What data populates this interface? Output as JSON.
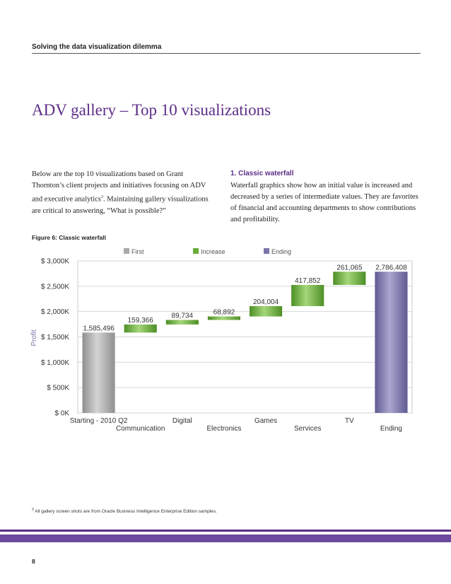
{
  "header": {
    "running_title": "Solving the data visualization dilemma"
  },
  "title": "ADV gallery – Top 10 visualizations",
  "intro": {
    "text_before_sup": "Below are the top 10 visualizations based on Grant Thornton’s client projects and initiatives focusing on ADV and executive analytics",
    "sup": "3",
    "text_after_sup": ". Maintaining gallery visualizations are critical to answering, “What is possible?”"
  },
  "section": {
    "heading": "1. Classic waterfall",
    "body": "Waterfall graphics show how an initial value is increased and decreased by a series of intermediate values. They are favorites of financial and accounting departments to show contributions and profitability."
  },
  "figure": {
    "caption": "Figure 6: Classic waterfall"
  },
  "chart_data": {
    "type": "bar",
    "subtype": "waterfall",
    "legend": [
      {
        "label": "First",
        "color": "#a9a9a9"
      },
      {
        "label": "Increase",
        "color": "#6aab3c"
      },
      {
        "label": "Ending",
        "color": "#7a75a8"
      }
    ],
    "legend_position": "top",
    "ylabel": "Profit",
    "ylim": [
      0,
      3000000
    ],
    "y_ticks": [
      {
        "value": 3000000,
        "label": "$ 3,000K"
      },
      {
        "value": 2500000,
        "label": "$ 2,500K"
      },
      {
        "value": 2000000,
        "label": "$ 2,000K"
      },
      {
        "value": 1500000,
        "label": "$ 1,500K"
      },
      {
        "value": 1000000,
        "label": "$ 1,000K"
      },
      {
        "value": 500000,
        "label": "$ 500K"
      },
      {
        "value": 0,
        "label": "$ 0K"
      }
    ],
    "grid": true,
    "categories": [
      {
        "label": "Starting - 2010 Q2",
        "type": "first",
        "start": 0,
        "value": 1585496,
        "data_label": "1,585,496",
        "label_row": 0
      },
      {
        "label": "Communication",
        "type": "increase",
        "start": 1585496,
        "value": 159366,
        "data_label": "159,366",
        "label_row": 1
      },
      {
        "label": "Digital",
        "type": "increase",
        "start": 1744862,
        "value": 89734,
        "data_label": "89,734",
        "label_row": 0
      },
      {
        "label": "Electronics",
        "type": "increase",
        "start": 1834596,
        "value": 68892,
        "data_label": "68,892",
        "label_row": 1
      },
      {
        "label": "Games",
        "type": "increase",
        "start": 1903488,
        "value": 204004,
        "data_label": "204,004",
        "label_row": 0
      },
      {
        "label": "Services",
        "type": "increase",
        "start": 2107492,
        "value": 417852,
        "data_label": "417,852",
        "label_row": 1
      },
      {
        "label": "TV",
        "type": "increase",
        "start": 2525344,
        "value": 261065,
        "data_label": "261,065",
        "label_row": 0
      },
      {
        "label": "Ending",
        "type": "ending",
        "start": 0,
        "value": 2786408,
        "data_label": "2,786,408",
        "label_row": 1
      }
    ]
  },
  "footnote": {
    "sup": "3",
    "text": " All gallery screen shots are from Oracle Business Intelligence Enterprise Edition samples."
  },
  "page_number": "8"
}
